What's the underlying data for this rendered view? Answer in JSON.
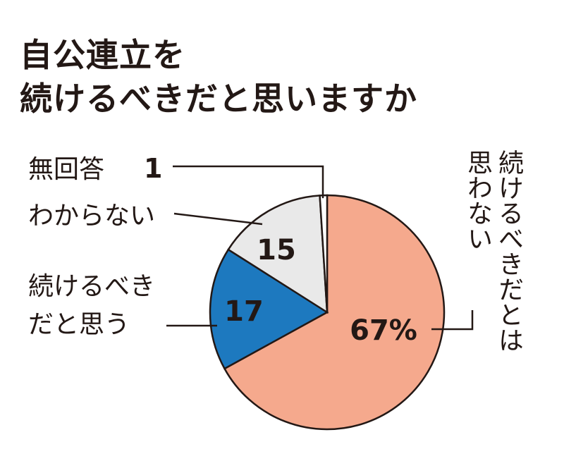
{
  "title": [
    "自公連立を",
    "続けるべきだと思いますか"
  ],
  "chart_data": {
    "type": "pie",
    "unit": "%",
    "slices": [
      {
        "label": "続けるべきだとは思わない",
        "label_lines": [
          "続けるべきだとは",
          "思わない"
        ],
        "value": 67,
        "value_text": "67%",
        "color": "#f5a98d"
      },
      {
        "label": "続けるべきだと思う",
        "label_lines": [
          "続けるべき",
          "だと思う"
        ],
        "value": 17,
        "value_text": "17",
        "color": "#1d79bf"
      },
      {
        "label": "わからない",
        "label_lines": [
          "わからない"
        ],
        "value": 15,
        "value_text": "15",
        "color": "#e9e9e9"
      },
      {
        "label": "無回答",
        "label_lines": [
          "無回答"
        ],
        "value": 1,
        "value_text": "1",
        "color": "#ffffff"
      }
    ]
  }
}
